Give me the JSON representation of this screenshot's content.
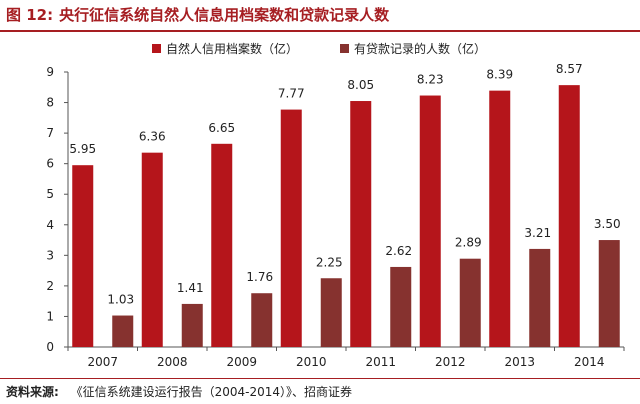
{
  "header": {
    "figure_label": "图 12:",
    "title": "央行征信系统自然人信息用档案数和贷款记录人数"
  },
  "chart_data": {
    "type": "bar",
    "title": "央行征信系统自然人信息用档案数和贷款记录人数",
    "xlabel": "",
    "ylabel": "",
    "categories": [
      "2007",
      "2008",
      "2009",
      "2010",
      "2011",
      "2012",
      "2013",
      "2014"
    ],
    "series": [
      {
        "name": "自然人信用档案数（亿）",
        "color": "#b5151b",
        "values": [
          5.95,
          6.36,
          6.65,
          7.77,
          8.05,
          8.23,
          8.39,
          8.57
        ],
        "labels": [
          "5.95",
          "6.36",
          "6.65",
          "7.77",
          "8.05",
          "8.23",
          "8.39",
          "8.57"
        ]
      },
      {
        "name": "有贷款记录的人数（亿）",
        "color": "#86322f",
        "values": [
          1.03,
          1.41,
          1.76,
          2.25,
          2.62,
          2.89,
          3.21,
          3.5
        ],
        "labels": [
          "1.03",
          "1.41",
          "1.76",
          "2.25",
          "2.62",
          "2.89",
          "3.21",
          "3.50"
        ]
      }
    ],
    "ylim": [
      0,
      9
    ],
    "yticks": [
      "0",
      "1",
      "2",
      "3",
      "4",
      "5",
      "6",
      "7",
      "8",
      "9"
    ],
    "grid": false,
    "legend_position": "top-center"
  },
  "footer": {
    "source_label": "资料来源:",
    "source_text": "《征信系统建设运行报告（2004-2014）》、招商证券"
  }
}
